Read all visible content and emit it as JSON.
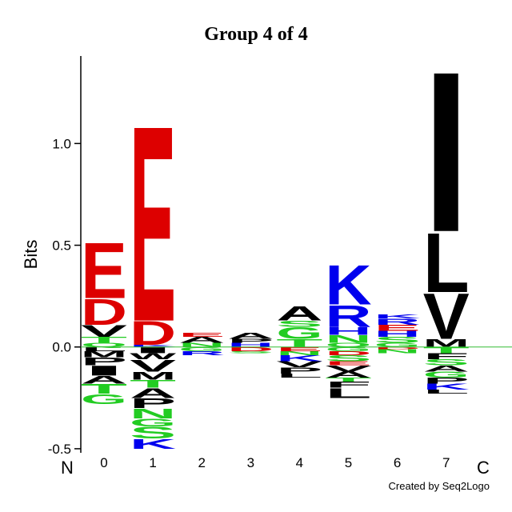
{
  "chart_data": {
    "type": "logo",
    "title": "Group 4 of 4",
    "ylabel": "Bits",
    "x_start_label": "N",
    "x_end_label": "C",
    "credit": "Created by Seq2Logo",
    "categories": [
      "0",
      "1",
      "2",
      "3",
      "4",
      "5",
      "6",
      "7"
    ],
    "ylim": [
      -0.52,
      1.43
    ],
    "yticks": [
      -0.5,
      0.5,
      {
        "value": 0,
        "label": "0.0"
      },
      {
        "value": 1,
        "label": "1.0"
      }
    ],
    "zero_line_color": "#33bb33",
    "colors": {
      "A": "#000000",
      "V": "#000000",
      "L": "#000000",
      "I": "#000000",
      "P": "#000000",
      "W": "#000000",
      "F": "#000000",
      "M": "#000000",
      "G": "#22cc22",
      "S": "#22cc22",
      "T": "#22cc22",
      "Y": "#22cc22",
      "C": "#22cc22",
      "N": "#22cc22",
      "Q": "#22cc22",
      "K": "#0000ee",
      "R": "#0000ee",
      "H": "#0000ee",
      "D": "#dd0000",
      "E": "#dd0000"
    },
    "stacks": [
      {
        "letters": [
          "Q",
          "T",
          "V",
          "D",
          "E",
          "L",
          "M",
          "P",
          "I",
          "A",
          "T",
          "G"
        ],
        "values": [
          0.02,
          0.03,
          0.06,
          0.13,
          0.28,
          -0.02,
          -0.03,
          -0.04,
          -0.05,
          -0.04,
          -0.05,
          -0.05
        ]
      },
      {
        "letters": [
          "K",
          "D",
          "E",
          "I",
          "W",
          "V",
          "M",
          "T",
          "A",
          "P",
          "N",
          "G",
          "S",
          "K"
        ],
        "values": [
          0.01,
          0.12,
          0.99,
          -0.03,
          -0.03,
          -0.06,
          -0.04,
          -0.04,
          -0.05,
          -0.05,
          -0.05,
          -0.04,
          -0.06,
          -0.05
        ]
      },
      {
        "letters": [
          "N",
          "A",
          "E",
          "G",
          "R"
        ],
        "values": [
          0.02,
          0.03,
          0.02,
          -0.02,
          -0.02
        ]
      },
      {
        "letters": [
          "H",
          "P",
          "A",
          "D",
          "S"
        ],
        "values": [
          0.02,
          0.02,
          0.03,
          -0.02,
          -0.01
        ]
      },
      {
        "letters": [
          "T",
          "G",
          "S",
          "A",
          "E",
          "N",
          "K",
          "V",
          "P",
          "L"
        ],
        "values": [
          0.04,
          0.06,
          0.03,
          0.07,
          -0.02,
          -0.02,
          -0.03,
          -0.03,
          -0.03,
          -0.02
        ]
      },
      {
        "letters": [
          "Q",
          "N",
          "H",
          "R",
          "K",
          "G",
          "D",
          "S",
          "E",
          "V",
          "A",
          "T",
          "F",
          "L"
        ],
        "values": [
          0.02,
          0.04,
          0.04,
          0.11,
          0.2,
          -0.02,
          -0.02,
          -0.03,
          -0.02,
          -0.03,
          -0.03,
          -0.02,
          -0.03,
          -0.05
        ]
      },
      {
        "letters": [
          "G",
          "S",
          "H",
          "E",
          "R",
          "K",
          "D",
          "N"
        ],
        "values": [
          0.02,
          0.03,
          0.03,
          0.03,
          0.03,
          0.02,
          -0.01,
          -0.02
        ]
      },
      {
        "letters": [
          "M",
          "V",
          "L",
          "I",
          "T",
          "F",
          "S",
          "A",
          "G",
          "P",
          "K",
          "L"
        ],
        "values": [
          0.04,
          0.23,
          0.3,
          0.81,
          -0.03,
          -0.03,
          -0.03,
          -0.03,
          -0.03,
          -0.03,
          -0.03,
          -0.02
        ]
      }
    ]
  }
}
